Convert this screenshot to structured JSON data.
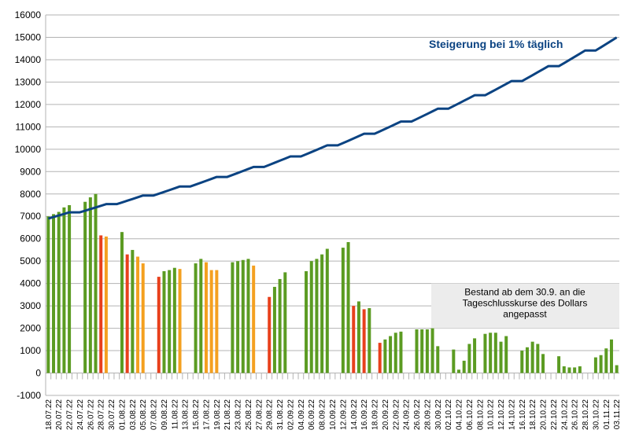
{
  "chart_data": {
    "type": "bar_line",
    "categories": [
      "18.07.22",
      null,
      "20.07.22",
      null,
      "22.07.22",
      null,
      "24.07.22",
      null,
      "26.07.22",
      null,
      "28.07.22",
      null,
      "30.07.22",
      null,
      "01.08.22",
      null,
      "03.08.22",
      null,
      "05.08.22",
      null,
      "07.08.22",
      null,
      "09.08.22",
      null,
      "11.08.22",
      null,
      "13.08.22",
      null,
      "15.08.22",
      null,
      "17.08.22",
      null,
      "19.08.22",
      null,
      "21.08.22",
      null,
      "23.08.22",
      null,
      "25.08.22",
      null,
      "27.08.22",
      null,
      "29.08.22",
      null,
      "31.08.22",
      null,
      "02.09.22",
      null,
      "04.09.22",
      null,
      "06.09.22",
      null,
      "08.09.22",
      null,
      "10.09.22",
      null,
      "12.09.22",
      null,
      "14.09.22",
      null,
      "16.09.22",
      null,
      "18.09.22",
      null,
      "20.09.22",
      null,
      "22.09.22",
      null,
      "24.09.22",
      null,
      "26.09.22",
      null,
      "28.09.22",
      null,
      "30.09.22",
      null,
      "02.10.22",
      null,
      "04.10.22",
      null,
      "06.10.22",
      null,
      "08.10.22",
      null,
      "10.10.22",
      null,
      "12.10.22",
      null,
      "14.10.22",
      null,
      "16.10.22",
      null,
      "18.10.22",
      null,
      "20.10.22",
      null,
      "22.10.22",
      null,
      "24.10.22",
      null,
      "26.10.22",
      null,
      "28.10.22",
      null,
      "30.10.22",
      null,
      "01.11.22",
      null,
      "03.11.22"
    ],
    "bars": {
      "values": [
        7000,
        7100,
        7200,
        7400,
        7500,
        null,
        null,
        7650,
        7850,
        8000,
        6150,
        6100,
        null,
        null,
        6300,
        5300,
        5500,
        5200,
        4900,
        null,
        null,
        4300,
        4550,
        4600,
        4700,
        4650,
        null,
        null,
        4900,
        5100,
        4950,
        4600,
        4600,
        null,
        null,
        4950,
        5000,
        5050,
        5100,
        4800,
        null,
        null,
        3400,
        3850,
        4200,
        4500,
        null,
        null,
        null,
        4550,
        5000,
        5100,
        5300,
        5550,
        null,
        null,
        5600,
        5850,
        3000,
        3200,
        2850,
        2900,
        null,
        1350,
        1500,
        1650,
        1800,
        1850,
        null,
        null,
        1950,
        1950,
        1950,
        2000,
        1200,
        null,
        null,
        1050,
        150,
        550,
        1300,
        1550,
        null,
        1750,
        1800,
        1800,
        1400,
        1650,
        null,
        null,
        1000,
        1150,
        1400,
        1300,
        850,
        null,
        null,
        750,
        300,
        250,
        250,
        300,
        null,
        null,
        700,
        800,
        1100,
        1500,
        350
      ],
      "colors": [
        "#5b9b22",
        "#5b9b22",
        "#5b9b22",
        "#5b9b22",
        "#5b9b22",
        null,
        null,
        "#5b9b22",
        "#5b9b22",
        "#5b9b22",
        "#e8401c",
        "#f4a020",
        null,
        null,
        "#5b9b22",
        "#e8401c",
        "#5b9b22",
        "#f4a020",
        "#f4a020",
        null,
        null,
        "#e8401c",
        "#5b9b22",
        "#5b9b22",
        "#5b9b22",
        "#f4a020",
        null,
        null,
        "#5b9b22",
        "#5b9b22",
        "#f4a020",
        "#f4a020",
        "#f4a020",
        null,
        null,
        "#5b9b22",
        "#5b9b22",
        "#5b9b22",
        "#5b9b22",
        "#f4a020",
        null,
        null,
        "#e8401c",
        "#5b9b22",
        "#5b9b22",
        "#5b9b22",
        null,
        null,
        null,
        "#5b9b22",
        "#5b9b22",
        "#5b9b22",
        "#5b9b22",
        "#5b9b22",
        null,
        null,
        "#5b9b22",
        "#5b9b22",
        "#e8401c",
        "#5b9b22",
        "#e8401c",
        "#5b9b22",
        null,
        "#e8401c",
        "#5b9b22",
        "#5b9b22",
        "#5b9b22",
        "#5b9b22",
        null,
        null,
        "#5b9b22",
        "#5b9b22",
        "#5b9b22",
        "#5b9b22",
        "#5b9b22",
        null,
        null,
        "#5b9b22",
        "#5b9b22",
        "#5b9b22",
        "#5b9b22",
        "#5b9b22",
        null,
        "#5b9b22",
        "#5b9b22",
        "#5b9b22",
        "#5b9b22",
        "#5b9b22",
        null,
        null,
        "#5b9b22",
        "#5b9b22",
        "#5b9b22",
        "#5b9b22",
        "#5b9b22",
        null,
        null,
        "#5b9b22",
        "#5b9b22",
        "#5b9b22",
        "#5b9b22",
        "#5b9b22",
        null,
        null,
        "#5b9b22",
        "#5b9b22",
        "#5b9b22",
        "#5b9b22",
        "#5b9b22"
      ]
    },
    "line": {
      "color": "#0b4382",
      "values": [
        6900,
        6969,
        7039,
        7109,
        7180,
        7180,
        7180,
        7252,
        7325,
        7398,
        7472,
        7547,
        7547,
        7547,
        7622,
        7698,
        7775,
        7853,
        7932,
        7932,
        7932,
        8011,
        8091,
        8172,
        8254,
        8336,
        8336,
        8336,
        8420,
        8504,
        8589,
        8675,
        8762,
        8762,
        8762,
        8849,
        8938,
        9027,
        9117,
        9209,
        9209,
        9209,
        9301,
        9394,
        9488,
        9582,
        9678,
        9678,
        9678,
        9775,
        9873,
        9972,
        10071,
        10172,
        10172,
        10172,
        10274,
        10377,
        10480,
        10585,
        10691,
        10691,
        10691,
        10798,
        10906,
        11015,
        11125,
        11236,
        11236,
        11236,
        11349,
        11462,
        11577,
        11693,
        11810,
        11810,
        11810,
        11928,
        12047,
        12168,
        12289,
        12412,
        12412,
        12412,
        12536,
        12662,
        12788,
        12916,
        13045,
        13045,
        13045,
        13176,
        13307,
        13441,
        13575,
        13711,
        13711,
        13711,
        13848,
        13986,
        14126,
        14267,
        14410,
        14410,
        14410,
        14554,
        14700,
        14847,
        14995
      ]
    },
    "line_label": "Steigerung bei 1% täglich",
    "note": [
      "Bestand ab dem 30.9. an die",
      "Tageschlusskurse des Dollars",
      "angepasst"
    ],
    "ylim": [
      -1000,
      16000
    ],
    "yticks": [
      -1000,
      0,
      1000,
      2000,
      3000,
      4000,
      5000,
      6000,
      7000,
      8000,
      9000,
      10000,
      11000,
      12000,
      13000,
      14000,
      15000,
      16000
    ],
    "grid": true
  }
}
